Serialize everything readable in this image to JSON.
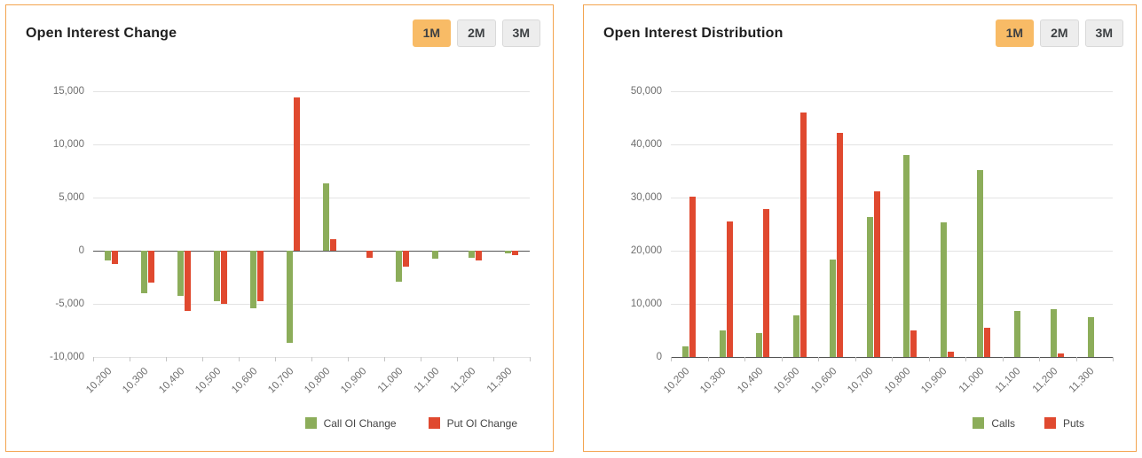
{
  "left_panel": {
    "title": "Open Interest Change",
    "buttons": [
      {
        "label": "1M",
        "active": true
      },
      {
        "label": "2M",
        "active": false
      },
      {
        "label": "3M",
        "active": false
      }
    ]
  },
  "right_panel": {
    "title": "Open Interest Distribution",
    "buttons": [
      {
        "label": "1M",
        "active": true
      },
      {
        "label": "2M",
        "active": false
      },
      {
        "label": "3M",
        "active": false
      }
    ]
  },
  "colors": {
    "call_green": "#8cad5a",
    "put_red": "#e0492f",
    "panel_border": "#f3a44f",
    "active_button_bg": "#f8bb66",
    "inactive_button_bg": "#ededed",
    "grid_line": "#e3e3e3",
    "zero_line": "#545454",
    "axis_text": "#6e6e6e"
  },
  "chart_data": [
    {
      "type": "bar",
      "title": "Open Interest Change",
      "categories": [
        "10,200",
        "10,300",
        "10,400",
        "10,500",
        "10,600",
        "10,700",
        "10,800",
        "10,900",
        "11,000",
        "11,100",
        "11,200",
        "11,300"
      ],
      "series": [
        {
          "name": "Call OI Change",
          "color": "#8cad5a",
          "values": [
            -900,
            -4000,
            -4300,
            -4800,
            -5400,
            -8700,
            6300,
            0,
            -2900,
            -800,
            -700,
            -300
          ]
        },
        {
          "name": "Put OI Change",
          "color": "#e0492f",
          "values": [
            -1300,
            -3000,
            -5700,
            -5000,
            -4800,
            14400,
            1100,
            -700,
            -1500,
            0,
            -900,
            -400
          ]
        }
      ],
      "ylim": [
        -10000,
        15000
      ],
      "y_ticks": [
        {
          "label": "15,000",
          "value": 15000
        },
        {
          "label": "10,000",
          "value": 10000
        },
        {
          "label": "5,000",
          "value": 5000
        },
        {
          "label": "0",
          "value": 0
        },
        {
          "label": "-5,000",
          "value": -5000
        },
        {
          "label": "-10,000",
          "value": -10000
        }
      ],
      "grid": true,
      "legend_position": "bottom-right"
    },
    {
      "type": "bar",
      "title": "Open Interest Distribution",
      "categories": [
        "10,200",
        "10,300",
        "10,400",
        "10,500",
        "10,600",
        "10,700",
        "10,800",
        "10,900",
        "11,000",
        "11,100",
        "11,200",
        "11,300"
      ],
      "series": [
        {
          "name": "Calls",
          "color": "#8cad5a",
          "values": [
            2000,
            5000,
            4400,
            7800,
            18300,
            26300,
            38000,
            25300,
            35200,
            8600,
            8900,
            7500
          ]
        },
        {
          "name": "Puts",
          "color": "#e0492f",
          "values": [
            30200,
            25500,
            27800,
            46000,
            42200,
            31200,
            5000,
            900,
            5400,
            0,
            700,
            0
          ]
        }
      ],
      "ylim": [
        0,
        50000
      ],
      "y_ticks": [
        {
          "label": "50,000",
          "value": 50000
        },
        {
          "label": "40,000",
          "value": 40000
        },
        {
          "label": "30,000",
          "value": 30000
        },
        {
          "label": "20,000",
          "value": 20000
        },
        {
          "label": "10,000",
          "value": 10000
        },
        {
          "label": "0",
          "value": 0
        }
      ],
      "grid": true,
      "legend_position": "bottom-right"
    }
  ]
}
